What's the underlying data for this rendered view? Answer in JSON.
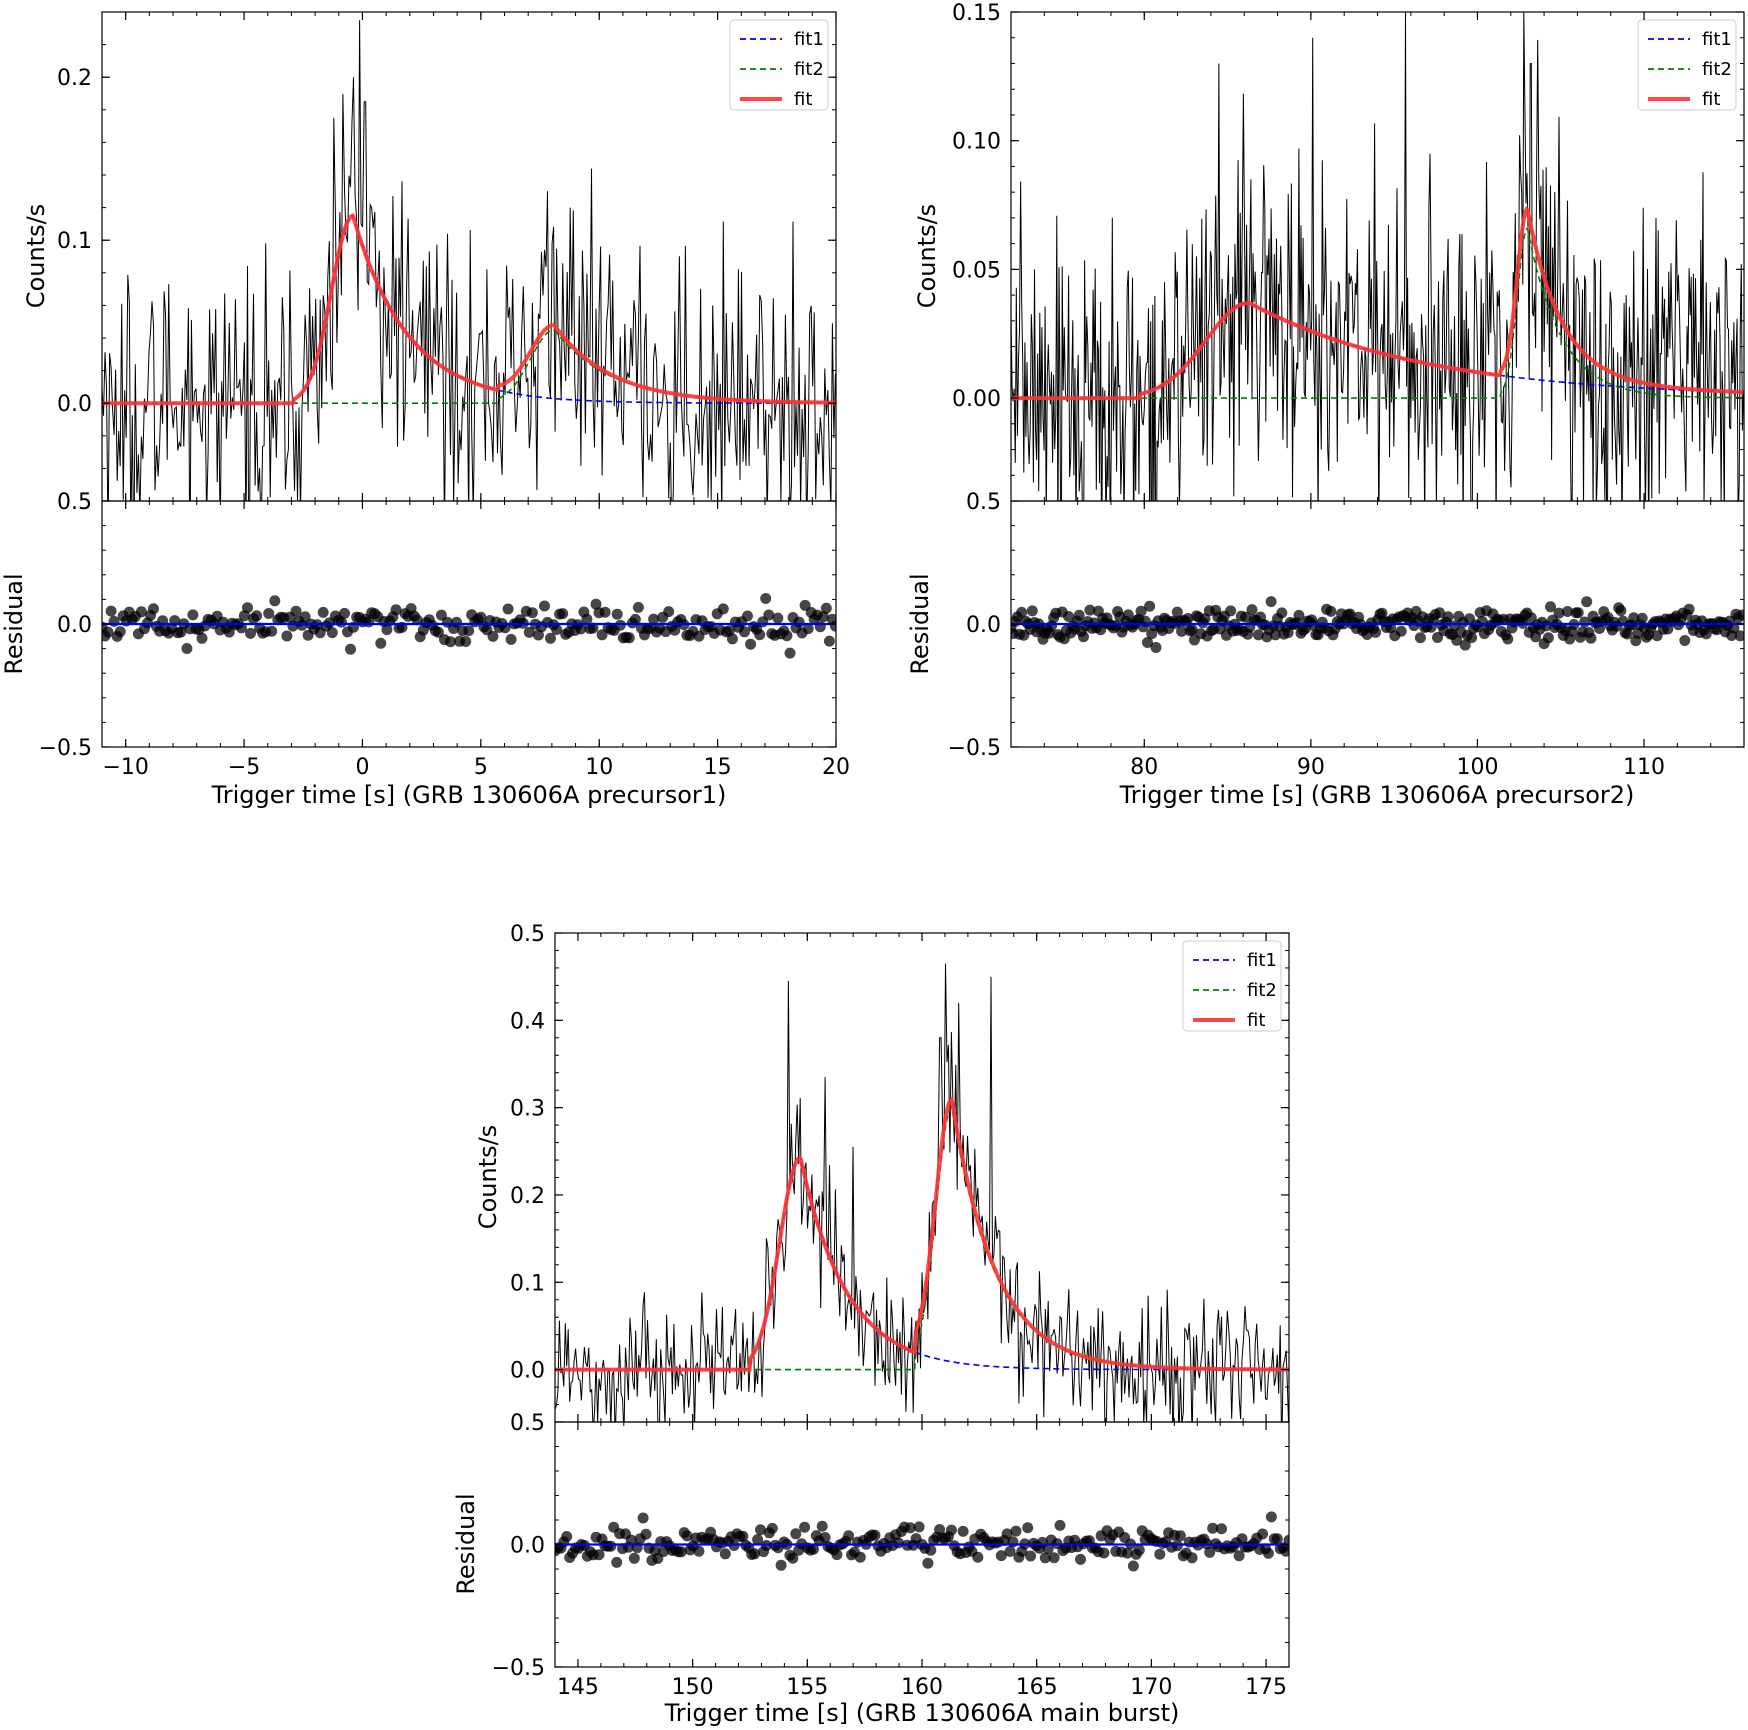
{
  "chart_data": [
    {
      "type": "line",
      "panel": "GRB 130606A precursor1",
      "xlabel": "Trigger time [s] (GRB 130606A precursor1)",
      "ylabel_top": "Counts/s",
      "ylabel_bottom": "Residual",
      "xlim": [
        -11,
        20
      ],
      "ylim_top": [
        -0.06,
        0.24
      ],
      "ylim_bottom": [
        -0.5,
        0.5
      ],
      "xticks": [
        -10,
        -5,
        0,
        5,
        10,
        15,
        20
      ],
      "xtick_labels": [
        "−10",
        "−5",
        "0",
        "5",
        "10",
        "15",
        "20"
      ],
      "yticks_top": [
        0.0,
        0.1,
        0.2
      ],
      "ytick_labels_top": [
        "0.0",
        "0.1",
        "0.2"
      ],
      "yticks_bottom": [
        -0.5,
        0.0,
        0.5
      ],
      "ytick_labels_bottom": [
        "−0.5",
        "0.0",
        "0.5"
      ],
      "legend": {
        "placement": "top-right",
        "entries": [
          "fit1",
          "fit2",
          "fit"
        ]
      },
      "grid": false,
      "pulses": [
        {
          "name": "fit1",
          "start": -2.9,
          "peak_time": -0.4,
          "peak": 0.115,
          "rise": 0.9,
          "decay": 2.3
        },
        {
          "name": "fit2",
          "start": 5.7,
          "peak_time": 8.1,
          "peak": 0.045,
          "rise": 1.0,
          "decay": 2.4
        }
      ],
      "noise": {
        "counts_sigma": 0.04,
        "residual_sigma": 0.035,
        "bin_width": 0.064
      },
      "spikes": [
        [
          -1.2,
          0.175
        ],
        [
          -0.4,
          0.2
        ],
        [
          -0.1,
          0.235
        ],
        [
          0.1,
          0.185
        ],
        [
          7.8,
          0.13
        ],
        [
          8.8,
          0.12
        ]
      ]
    },
    {
      "type": "line",
      "panel": "GRB 130606A precursor2",
      "xlabel": "Trigger time [s] (GRB 130606A precursor2)",
      "ylabel_top": "Counts/s",
      "ylabel_bottom": "Residual",
      "xlim": [
        72,
        116
      ],
      "ylim_top": [
        -0.04,
        0.15
      ],
      "ylim_bottom": [
        -0.5,
        0.5
      ],
      "xticks": [
        80,
        90,
        100,
        110
      ],
      "xtick_labels": [
        "80",
        "90",
        "100",
        "110"
      ],
      "yticks_top": [
        0.0,
        0.05,
        0.1,
        0.15
      ],
      "ytick_labels_top": [
        "0.00",
        "0.05",
        "0.10",
        "0.15"
      ],
      "yticks_bottom": [
        -0.5,
        0.0,
        0.5
      ],
      "ytick_labels_bottom": [
        "−0.5",
        "0.0",
        "0.5"
      ],
      "legend": {
        "placement": "top-right",
        "entries": [
          "fit1",
          "fit2",
          "fit"
        ]
      },
      "grid": false,
      "pulses": [
        {
          "name": "fit1",
          "start": 79.7,
          "peak_time": 86.3,
          "peak": 0.037,
          "rise": 2.6,
          "decay": 10.5
        },
        {
          "name": "fit2",
          "start": 101.4,
          "peak_time": 103.0,
          "peak": 0.066,
          "rise": 0.6,
          "decay": 2.0
        }
      ],
      "noise": {
        "counts_sigma": 0.033,
        "residual_sigma": 0.03,
        "bin_width": 0.064
      },
      "spikes": [
        [
          90.1,
          0.14
        ],
        [
          95.7,
          0.15
        ],
        [
          102.8,
          0.15
        ],
        [
          103.2,
          0.13
        ],
        [
          84.5,
          0.13
        ]
      ]
    },
    {
      "type": "line",
      "panel": "GRB 130606A main burst",
      "xlabel": "Trigger time [s] (GRB 130606A main burst)",
      "ylabel_top": "Counts/s",
      "ylabel_bottom": "Residual",
      "xlim": [
        144,
        176
      ],
      "ylim_top": [
        -0.06,
        0.5
      ],
      "ylim_bottom": [
        -0.5,
        0.5
      ],
      "xticks": [
        145,
        150,
        155,
        160,
        165,
        170,
        175
      ],
      "xtick_labels": [
        "145",
        "150",
        "155",
        "160",
        "165",
        "170",
        "175"
      ],
      "yticks_top": [
        0.0,
        0.1,
        0.2,
        0.3,
        0.4,
        0.5
      ],
      "ytick_labels_top": [
        "0.0",
        "0.1",
        "0.2",
        "0.3",
        "0.4",
        "0.5"
      ],
      "yticks_bottom": [
        -0.5,
        0.0,
        0.5
      ],
      "ytick_labels_bottom": [
        "−0.5",
        "0.0",
        "0.5"
      ],
      "legend": {
        "placement": "top-right",
        "entries": [
          "fit1",
          "fit2",
          "fit"
        ]
      },
      "grid": false,
      "pulses": [
        {
          "name": "fit1",
          "start": 152.5,
          "peak_time": 154.7,
          "peak": 0.243,
          "rise": 0.9,
          "decay": 2.0
        },
        {
          "name": "fit2",
          "start": 159.7,
          "peak_time": 161.3,
          "peak": 0.3,
          "rise": 0.7,
          "decay": 1.9
        }
      ],
      "noise": {
        "counts_sigma": 0.04,
        "residual_sigma": 0.035,
        "bin_width": 0.064
      },
      "spikes": [
        [
          154.2,
          0.445
        ],
        [
          155.8,
          0.335
        ],
        [
          157.0,
          0.255
        ],
        [
          161.0,
          0.465
        ],
        [
          161.6,
          0.42
        ],
        [
          163.0,
          0.45
        ],
        [
          160.8,
          0.38
        ]
      ]
    }
  ]
}
